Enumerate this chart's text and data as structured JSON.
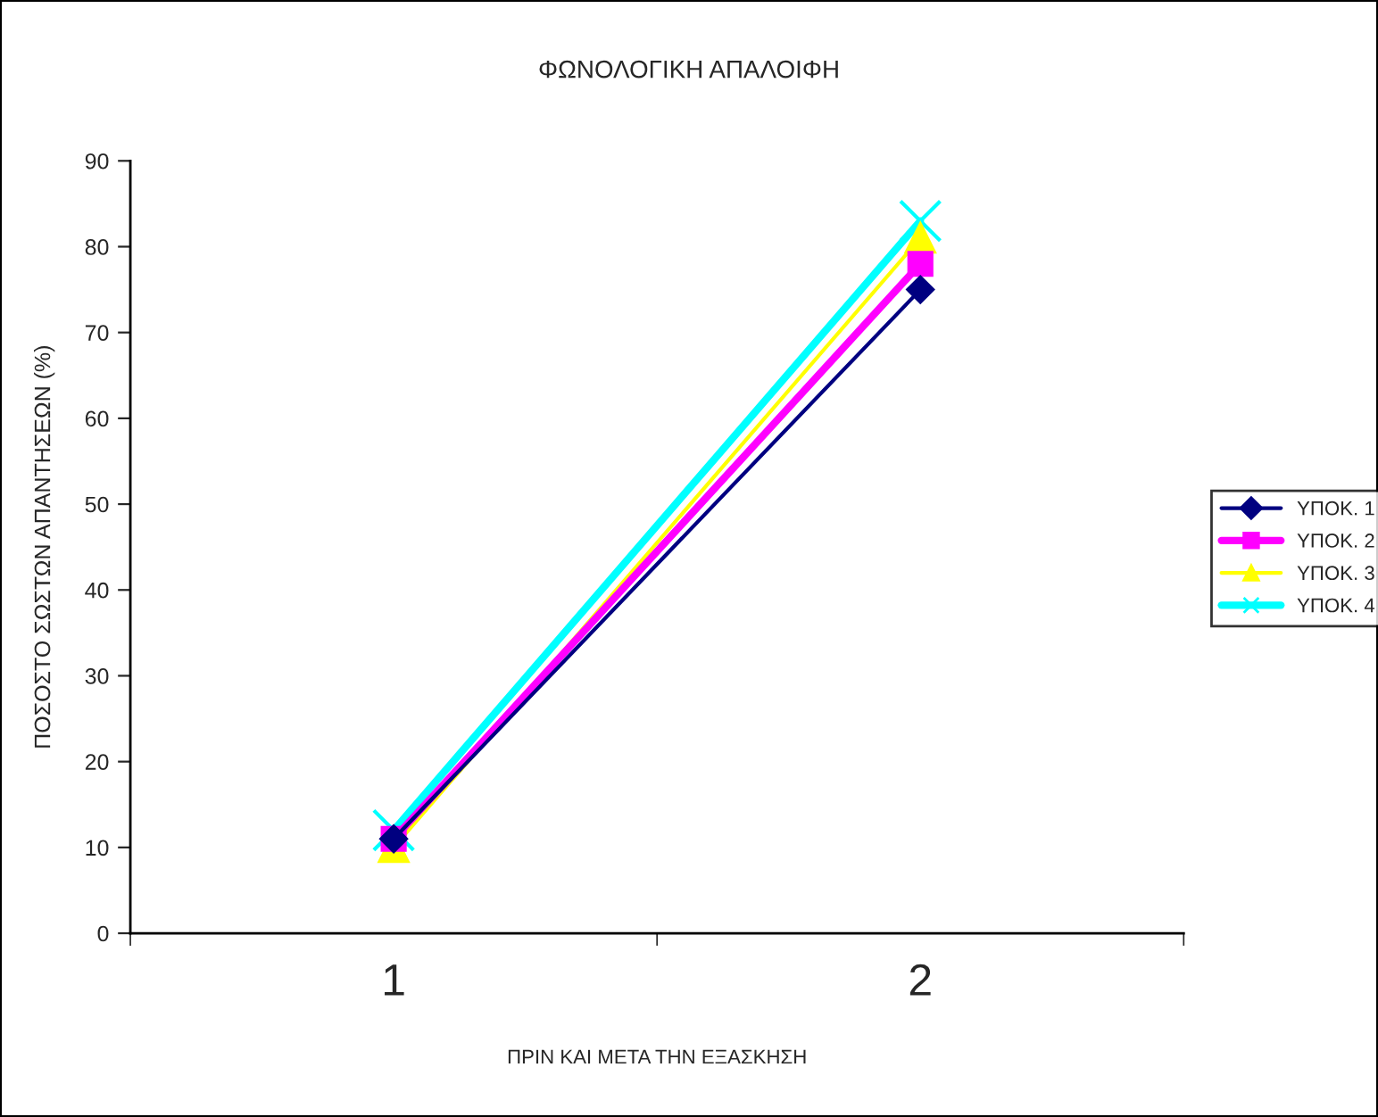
{
  "chart_data": {
    "type": "line",
    "title": "ΦΩΝΟΛΟΓΙΚΗ ΑΠΑΛΟΙΦΗ",
    "xlabel": "ΠΡΙΝ ΚΑΙ ΜΕΤΑ ΤΗΝ ΕΞΑΣΚΗΣΗ",
    "ylabel": "ΠΟΣΟΣΤΟ ΣΩΣΤΩΝ ΑΠΑΝΤΗΣΕΩΝ (%)",
    "categories": [
      "1",
      "2"
    ],
    "series": [
      {
        "name": "ΥΠΟΚ. 1",
        "color": "#000080",
        "marker": "diamond",
        "values": [
          11,
          75
        ]
      },
      {
        "name": "ΥΠΟΚ. 2",
        "color": "#ff00ff",
        "marker": "square",
        "values": [
          11,
          78
        ]
      },
      {
        "name": "ΥΠΟΚ. 3",
        "color": "#ffff00",
        "marker": "triangle",
        "values": [
          10,
          81
        ]
      },
      {
        "name": "ΥΠΟΚ. 4",
        "color": "#00ffff",
        "marker": "cross",
        "values": [
          12,
          83
        ]
      }
    ],
    "ylim": [
      0,
      90
    ],
    "yticks": [
      0,
      10,
      20,
      30,
      40,
      50,
      60,
      70,
      80,
      90
    ],
    "grid": false,
    "legend": "right",
    "line_style": "solid"
  }
}
